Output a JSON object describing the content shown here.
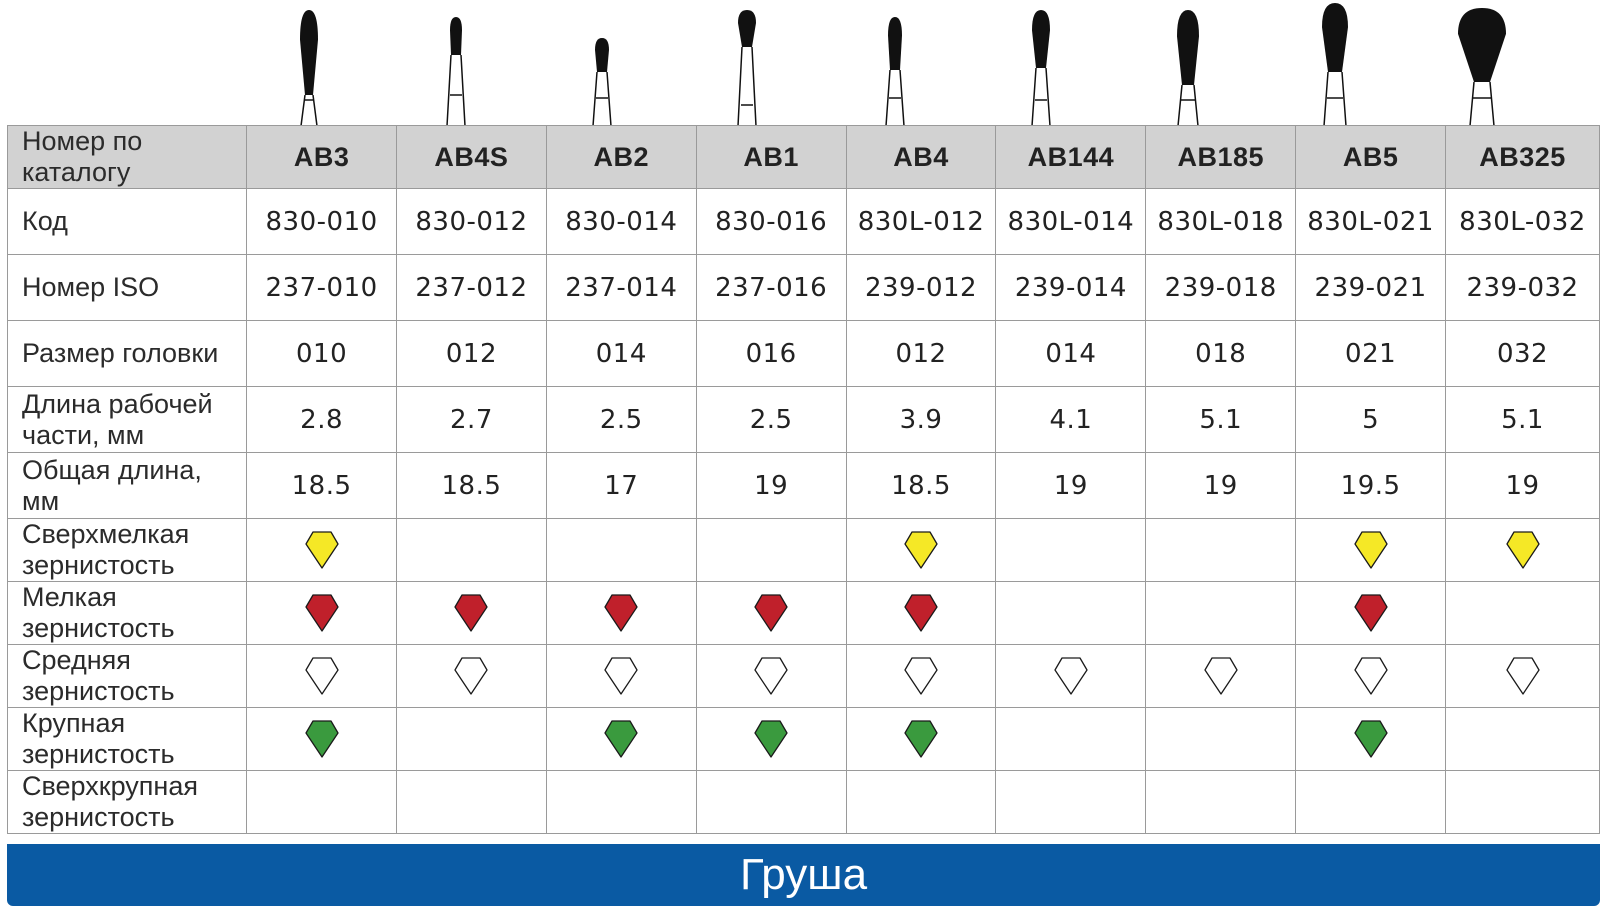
{
  "row_labels": {
    "catalog": "Номер по каталогу",
    "code": "Код",
    "iso": "Номер ISO",
    "head_size": "Размер головки",
    "work_length": "Длина рабочей части, мм",
    "total_length": "Общая длина, мм",
    "grit_extra_fine": "Сверхмелкая зернистость",
    "grit_fine": "Мелкая зернистость",
    "grit_medium": "Средняя зернистость",
    "grit_coarse": "Крупная зернистость",
    "grit_extra_coarse": "Сверхкрупная зернистость"
  },
  "columns": [
    {
      "catalog": "AB3",
      "code": "830-010",
      "iso": "237-010",
      "head_size": "010",
      "work_length": "2.8",
      "total_length": "18.5",
      "grits": {
        "extra_fine": true,
        "fine": true,
        "medium": true,
        "coarse": true,
        "extra_coarse": false
      }
    },
    {
      "catalog": "AB4S",
      "code": "830-012",
      "iso": "237-012",
      "head_size": "012",
      "work_length": "2.7",
      "total_length": "18.5",
      "grits": {
        "extra_fine": false,
        "fine": true,
        "medium": true,
        "coarse": false,
        "extra_coarse": false
      }
    },
    {
      "catalog": "AB2",
      "code": "830-014",
      "iso": "237-014",
      "head_size": "014",
      "work_length": "2.5",
      "total_length": "17",
      "grits": {
        "extra_fine": false,
        "fine": true,
        "medium": true,
        "coarse": true,
        "extra_coarse": false
      }
    },
    {
      "catalog": "AB1",
      "code": "830-016",
      "iso": "237-016",
      "head_size": "016",
      "work_length": "2.5",
      "total_length": "19",
      "grits": {
        "extra_fine": false,
        "fine": true,
        "medium": true,
        "coarse": true,
        "extra_coarse": false
      }
    },
    {
      "catalog": "AB4",
      "code": "830L-012",
      "iso": "239-012",
      "head_size": "012",
      "work_length": "3.9",
      "total_length": "18.5",
      "grits": {
        "extra_fine": true,
        "fine": true,
        "medium": true,
        "coarse": true,
        "extra_coarse": false
      }
    },
    {
      "catalog": "AB144",
      "code": "830L-014",
      "iso": "239-014",
      "head_size": "014",
      "work_length": "4.1",
      "total_length": "19",
      "grits": {
        "extra_fine": false,
        "fine": false,
        "medium": true,
        "coarse": false,
        "extra_coarse": false
      }
    },
    {
      "catalog": "AB185",
      "code": "830L-018",
      "iso": "239-018",
      "head_size": "018",
      "work_length": "5.1",
      "total_length": "19",
      "grits": {
        "extra_fine": false,
        "fine": false,
        "medium": true,
        "coarse": false,
        "extra_coarse": false
      }
    },
    {
      "catalog": "AB5",
      "code": "830L-021",
      "iso": "239-021",
      "head_size": "021",
      "work_length": "5",
      "total_length": "19.5",
      "grits": {
        "extra_fine": true,
        "fine": true,
        "medium": true,
        "coarse": true,
        "extra_coarse": false
      }
    },
    {
      "catalog": "AB325",
      "code": "830L-032",
      "iso": "239-032",
      "head_size": "032",
      "work_length": "5.1",
      "total_length": "19",
      "grits": {
        "extra_fine": true,
        "fine": false,
        "medium": true,
        "coarse": false,
        "extra_coarse": false
      }
    }
  ],
  "grit_colors": {
    "extra_fine": "#f5e826",
    "fine": "#c0202b",
    "medium": "#ffffff",
    "coarse": "#3a9a3e",
    "extra_coarse": "#111111"
  },
  "bur_icons": [
    "pear-bur-icon",
    "pear-bur-icon",
    "pear-bur-icon",
    "pear-bur-icon",
    "pear-bur-icon",
    "pear-bur-icon",
    "pear-bur-icon",
    "pear-bur-icon",
    "pear-bur-icon"
  ],
  "footer": {
    "title": "Груша"
  },
  "colors": {
    "header_bg": "#d2d2d2",
    "footer_bg": "#0a5aa3",
    "grid_line": "#9a9a9a"
  }
}
